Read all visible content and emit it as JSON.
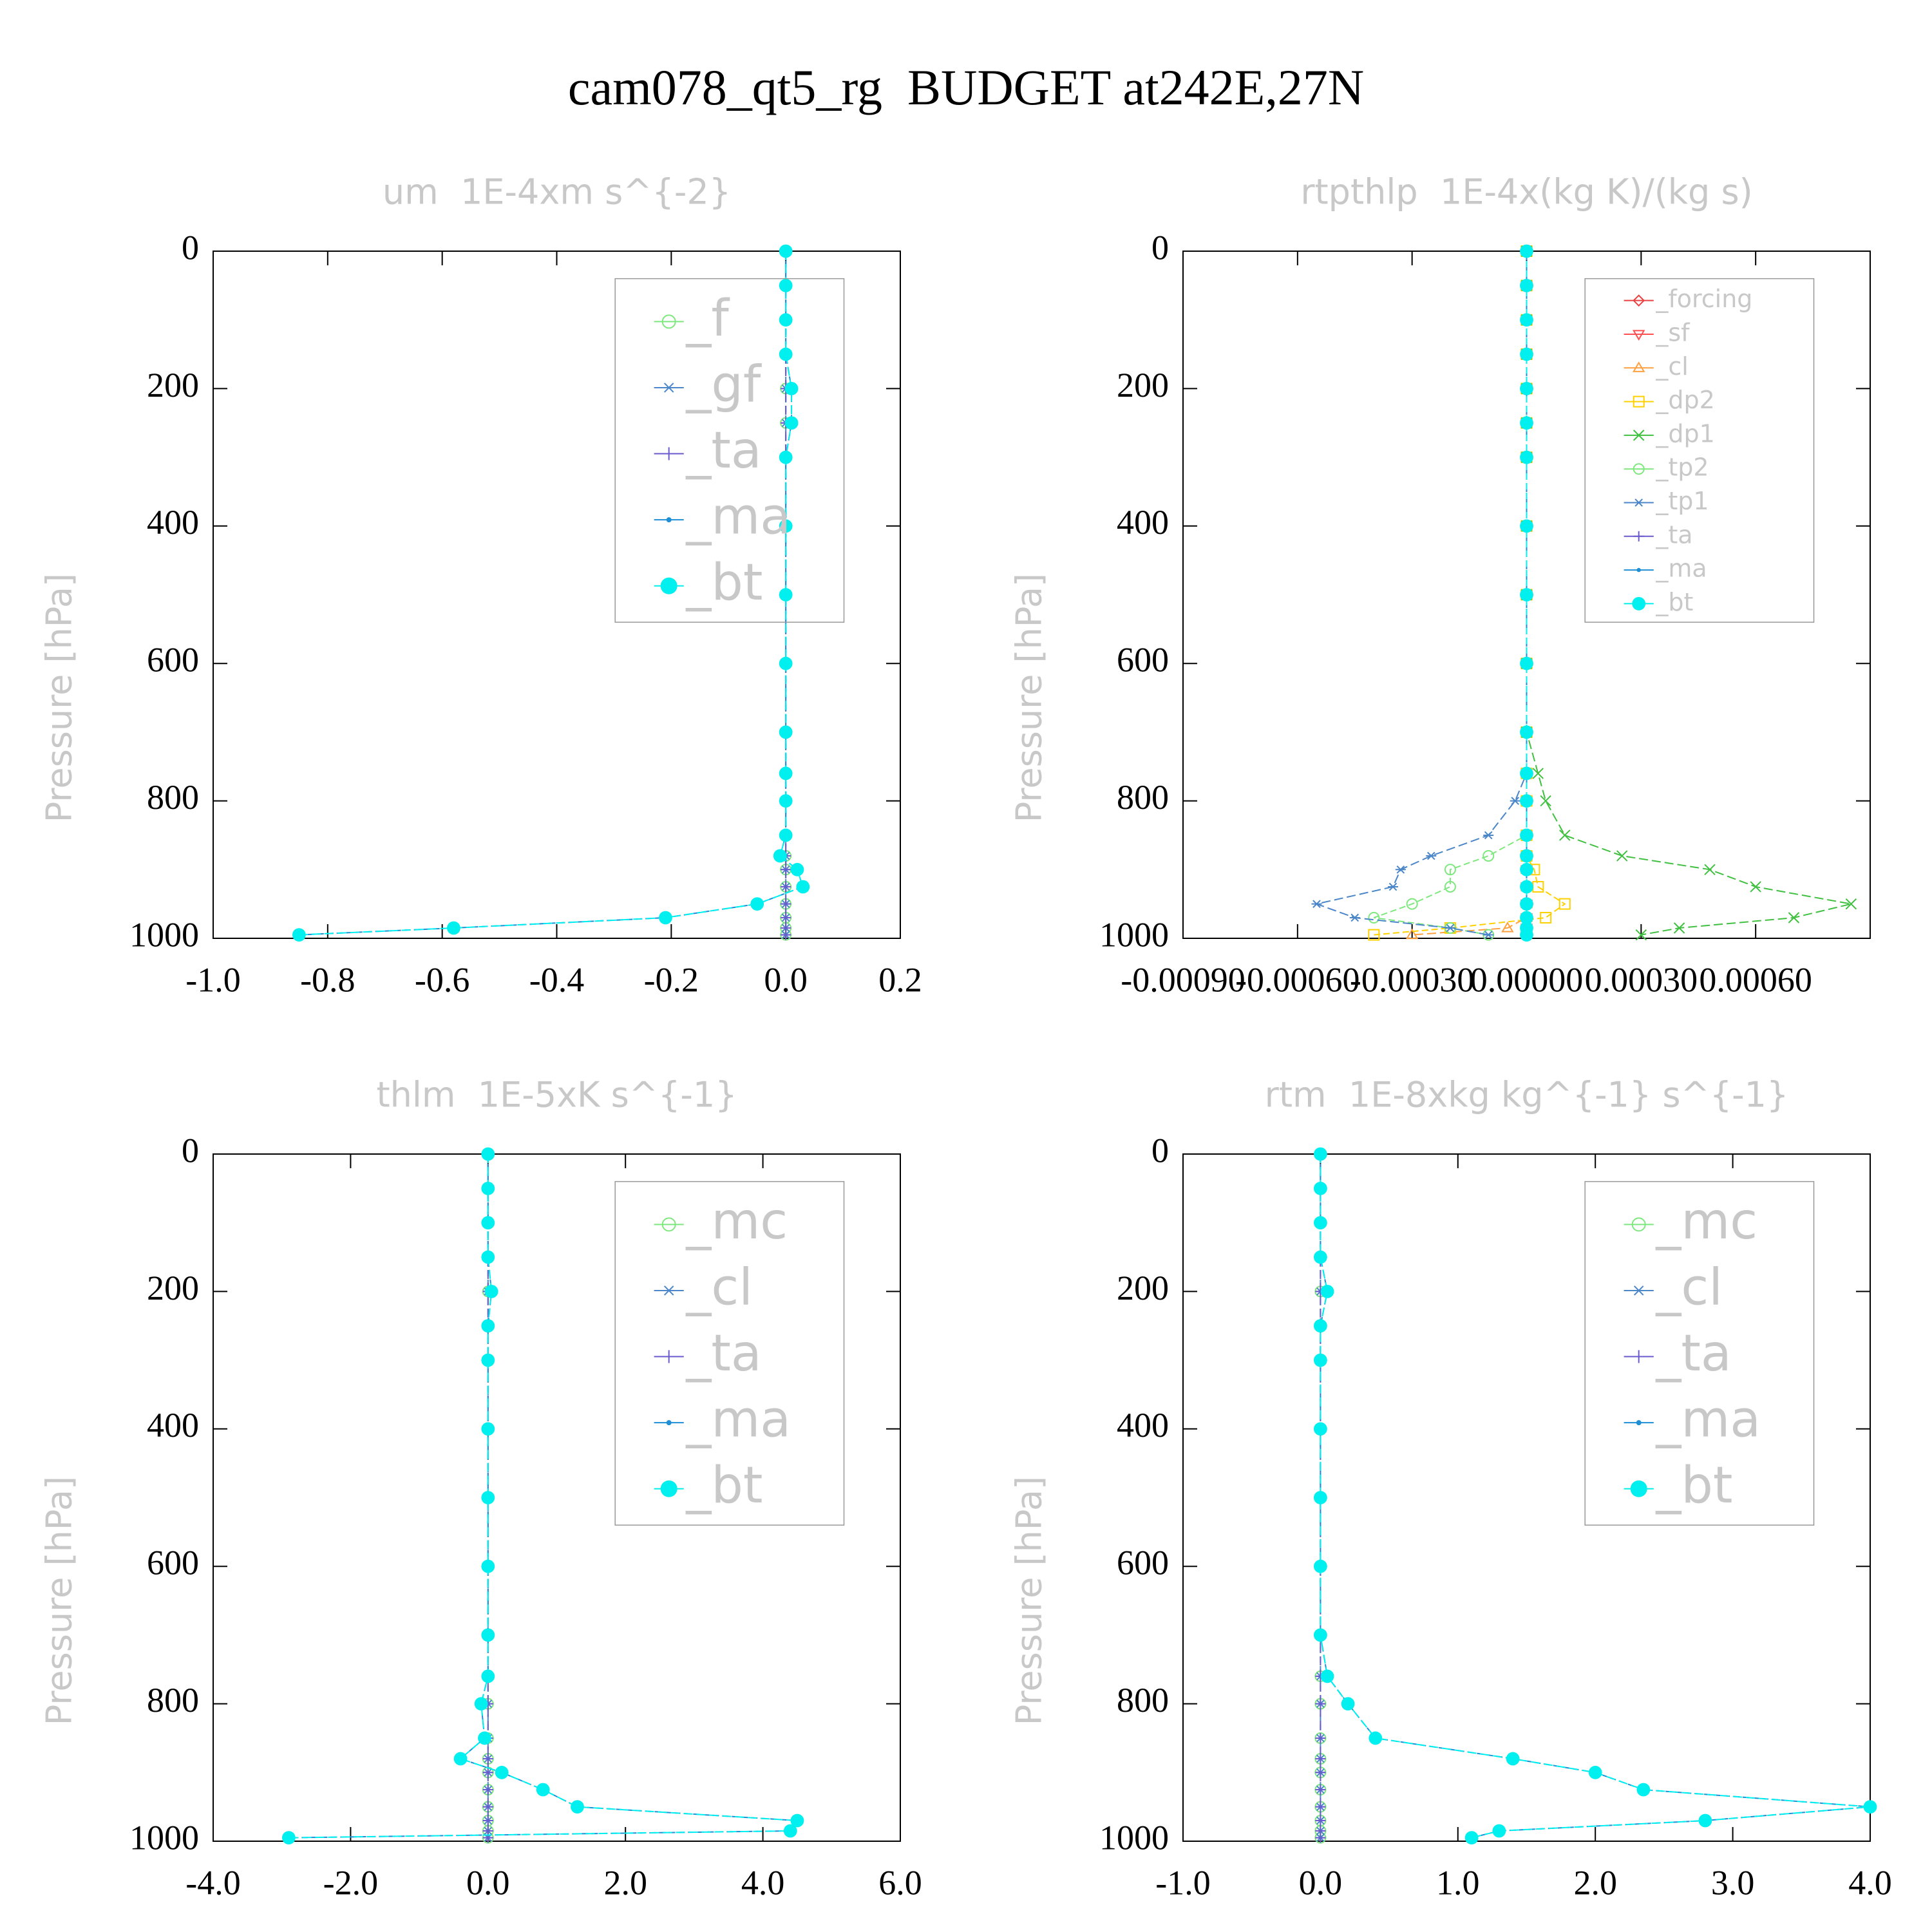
{
  "title": "cam078_qt5_rg  BUDGET at242E,27N",
  "chart_data": [
    {
      "type": "line",
      "title": "um  1E-4xm s^{-2}",
      "ylabel": "Pressure [hPa]",
      "legend": "upper right",
      "xlim": [
        -1,
        0.2
      ],
      "xticks": [
        {
          "value": -1,
          "label": "-1.0"
        },
        -0.8,
        -0.6,
        -0.4,
        -0.2,
        {
          "value": 0,
          "label": "0.0"
        },
        0.2
      ],
      "ylim": [
        1000,
        0
      ],
      "yticks": [
        0,
        200,
        400,
        600,
        800,
        1000
      ],
      "y": [
        0,
        50,
        100,
        150,
        200,
        250,
        300,
        400,
        500,
        600,
        700,
        760,
        800,
        850,
        880,
        900,
        925,
        950,
        970,
        985,
        995
      ],
      "series": [
        {
          "name": "_f",
          "color": "#7ee87e",
          "marker": "circle",
          "values": [
            0,
            0,
            0,
            0,
            0,
            0,
            0,
            0,
            0,
            0,
            0,
            0,
            0,
            0,
            0,
            0,
            0,
            0,
            0,
            0,
            0
          ]
        },
        {
          "name": "_gf",
          "color": "#4a86c8",
          "marker": "asterisk",
          "values": [
            0,
            0,
            0,
            0,
            0,
            0,
            0,
            0,
            0,
            0,
            0,
            0,
            0,
            0,
            0,
            0,
            0,
            0,
            0,
            0,
            0
          ]
        },
        {
          "name": "_ta",
          "color": "#6a5acd",
          "marker": "plus",
          "values": [
            0,
            0,
            0,
            0,
            0,
            0,
            0,
            0,
            0,
            0,
            0,
            0,
            0,
            0,
            0,
            0,
            0,
            0,
            0,
            0,
            0
          ]
        },
        {
          "name": "_ma",
          "color": "#1e8fd6",
          "marker": "dot",
          "values": [
            0,
            0,
            0,
            0,
            0.01,
            0.01,
            0,
            0,
            0,
            0,
            0,
            0,
            0,
            0,
            -0.01,
            0.02,
            0.03,
            -0.05,
            -0.21,
            -0.58,
            -0.85
          ]
        },
        {
          "name": "_bt",
          "color": "#00f0f0",
          "marker": "disc",
          "values": [
            0,
            0,
            0,
            0,
            0.01,
            0.01,
            0,
            0,
            0,
            0,
            0,
            0,
            0,
            0,
            -0.01,
            0.02,
            0.03,
            -0.05,
            -0.21,
            -0.58,
            -0.85
          ]
        }
      ]
    },
    {
      "type": "line",
      "title": "rtpthlp  1E-4x(kg K)/(kg s)",
      "ylabel": "Pressure [hPa]",
      "legend": "upper right",
      "xlim": [
        -0.0009,
        0.0009
      ],
      "xticks": [
        {
          "value": -0.0009,
          "label": "-0.00090"
        },
        {
          "value": -0.0006,
          "label": "-0.00060"
        },
        {
          "value": -0.0003,
          "label": "-0.00030"
        },
        {
          "value": 0,
          "label": "0.00000"
        },
        {
          "value": 0.0003,
          "label": "0.00030"
        },
        {
          "value": 0.0006,
          "label": "0.00060"
        }
      ],
      "ylim": [
        1000,
        0
      ],
      "yticks": [
        0,
        200,
        400,
        600,
        800,
        1000
      ],
      "y": [
        0,
        50,
        100,
        150,
        200,
        250,
        300,
        400,
        500,
        600,
        700,
        760,
        800,
        850,
        880,
        900,
        925,
        950,
        970,
        985,
        995
      ],
      "series": [
        {
          "name": "_forcing",
          "color": "#e84040",
          "marker": "diamond",
          "values": [
            0,
            0,
            0,
            0,
            0,
            0,
            0,
            0,
            0,
            0,
            0,
            0,
            0,
            0,
            0,
            0,
            0,
            0,
            0,
            0,
            0
          ]
        },
        {
          "name": "_sf",
          "color": "#ff5050",
          "marker": "triangle-down",
          "values": [
            0,
            0,
            0,
            0,
            0,
            0,
            0,
            0,
            0,
            0,
            0,
            0,
            0,
            0,
            0,
            0,
            0,
            0,
            0,
            0,
            0
          ]
        },
        {
          "name": "_cl",
          "color": "#ffa040",
          "marker": "triangle",
          "values": [
            0,
            0,
            0,
            0,
            0,
            0,
            0,
            0,
            0,
            0,
            0,
            0,
            0,
            0,
            0,
            0,
            0,
            0,
            0,
            -5e-05,
            -0.0003
          ]
        },
        {
          "name": "_dp2",
          "color": "#ffd000",
          "marker": "square",
          "values": [
            0,
            0,
            0,
            0,
            0,
            0,
            0,
            0,
            0,
            0,
            0,
            0,
            0,
            0,
            0,
            2e-05,
            3e-05,
            0.0001,
            5e-05,
            -0.0002,
            -0.0004
          ]
        },
        {
          "name": "_dp1",
          "color": "#40c040",
          "marker": "cross",
          "values": [
            0,
            0,
            0,
            0,
            0,
            0,
            0,
            0,
            0,
            0,
            0,
            3e-05,
            5e-05,
            0.0001,
            0.00025,
            0.00048,
            0.0006,
            0.00085,
            0.0007,
            0.0004,
            0.0003
          ]
        },
        {
          "name": "_tp2",
          "color": "#7ee87e",
          "marker": "circle",
          "values": [
            0,
            0,
            0,
            0,
            0,
            0,
            0,
            0,
            0,
            0,
            0,
            0,
            0,
            0,
            -0.0001,
            -0.0002,
            -0.0002,
            -0.0003,
            -0.0004,
            -0.0002,
            -0.0001
          ]
        },
        {
          "name": "_tp1",
          "color": "#4a86c8",
          "marker": "asterisk",
          "values": [
            0,
            0,
            0,
            0,
            0,
            0,
            0,
            0,
            0,
            0,
            0,
            0,
            -3e-05,
            -0.0001,
            -0.00025,
            -0.00033,
            -0.00035,
            -0.00055,
            -0.00045,
            -0.0002,
            -0.0001
          ]
        },
        {
          "name": "_ta",
          "color": "#6a5acd",
          "marker": "plus",
          "values": [
            0,
            0,
            0,
            0,
            0,
            0,
            0,
            0,
            0,
            0,
            0,
            0,
            0,
            0,
            0,
            0,
            0,
            0,
            0,
            0,
            0
          ]
        },
        {
          "name": "_ma",
          "color": "#1e8fd6",
          "marker": "dot",
          "values": [
            0,
            0,
            0,
            0,
            0,
            0,
            0,
            0,
            0,
            0,
            0,
            0,
            0,
            0,
            0,
            0,
            0,
            0,
            0,
            0,
            0
          ]
        },
        {
          "name": "_bt",
          "color": "#00f0f0",
          "marker": "disc",
          "values": [
            0,
            0,
            0,
            0,
            0,
            0,
            0,
            0,
            0,
            0,
            0,
            0,
            0,
            0,
            0,
            0,
            0,
            0,
            0,
            0,
            0
          ]
        }
      ]
    },
    {
      "type": "line",
      "title": "thlm  1E-5xK s^{-1}",
      "ylabel": "Pressure [hPa]",
      "legend": "upper right",
      "xlim": [
        -4,
        6
      ],
      "xticks": [
        {
          "value": -4,
          "label": "-4.0"
        },
        {
          "value": -2,
          "label": "-2.0"
        },
        {
          "value": 0,
          "label": "0.0"
        },
        {
          "value": 2,
          "label": "2.0"
        },
        {
          "value": 4,
          "label": "4.0"
        },
        {
          "value": 6,
          "label": "6.0"
        }
      ],
      "ylim": [
        1000,
        0
      ],
      "yticks": [
        0,
        200,
        400,
        600,
        800,
        1000
      ],
      "y": [
        0,
        50,
        100,
        150,
        200,
        250,
        300,
        400,
        500,
        600,
        700,
        760,
        800,
        850,
        880,
        900,
        925,
        950,
        970,
        985,
        995
      ],
      "series": [
        {
          "name": "_mc",
          "color": "#7ee87e",
          "marker": "circle",
          "values": [
            0,
            0,
            0,
            0,
            0,
            0,
            0,
            0,
            0,
            0,
            0,
            0,
            0,
            0,
            0,
            0,
            0,
            0,
            0,
            0,
            0
          ]
        },
        {
          "name": "_cl",
          "color": "#4a86c8",
          "marker": "asterisk",
          "values": [
            0,
            0,
            0,
            0,
            0,
            0,
            0,
            0,
            0,
            0,
            0,
            0,
            0,
            0,
            0,
            0,
            0,
            0,
            0,
            0,
            0
          ]
        },
        {
          "name": "_ta",
          "color": "#6a5acd",
          "marker": "plus",
          "values": [
            0,
            0,
            0,
            0,
            0,
            0,
            0,
            0,
            0,
            0,
            0,
            0,
            0,
            0,
            0,
            0,
            0,
            0,
            0,
            0,
            0
          ]
        },
        {
          "name": "_ma",
          "color": "#1e8fd6",
          "marker": "dot",
          "values": [
            0,
            0,
            0,
            0,
            0.05,
            0,
            0,
            0,
            0,
            0,
            0,
            0,
            -0.1,
            -0.05,
            -0.4,
            0.2,
            0.8,
            1.3,
            4.5,
            4.4,
            -2.9
          ]
        },
        {
          "name": "_bt",
          "color": "#00f0f0",
          "marker": "disc",
          "values": [
            0,
            0,
            0,
            0,
            0.05,
            0,
            0,
            0,
            0,
            0,
            0,
            0,
            -0.1,
            -0.05,
            -0.4,
            0.2,
            0.8,
            1.3,
            4.5,
            4.4,
            -2.9
          ]
        }
      ]
    },
    {
      "type": "line",
      "title": "rtm  1E-8xkg kg^{-1} s^{-1}",
      "ylabel": "Pressure [hPa]",
      "legend": "upper right",
      "xlim": [
        -1,
        4
      ],
      "xticks": [
        {
          "value": -1,
          "label": "-1.0"
        },
        {
          "value": 0,
          "label": "0.0"
        },
        {
          "value": 1,
          "label": "1.0"
        },
        {
          "value": 2,
          "label": "2.0"
        },
        {
          "value": 3,
          "label": "3.0"
        },
        {
          "value": 4,
          "label": "4.0"
        }
      ],
      "ylim": [
        1000,
        0
      ],
      "yticks": [
        0,
        200,
        400,
        600,
        800,
        1000
      ],
      "y": [
        0,
        50,
        100,
        150,
        200,
        250,
        300,
        400,
        500,
        600,
        700,
        760,
        800,
        850,
        880,
        900,
        925,
        950,
        970,
        985,
        995
      ],
      "series": [
        {
          "name": "_mc",
          "color": "#7ee87e",
          "marker": "circle",
          "values": [
            0,
            0,
            0,
            0,
            0,
            0,
            0,
            0,
            0,
            0,
            0,
            0,
            0,
            0,
            0,
            0,
            0,
            0,
            0,
            0,
            0
          ]
        },
        {
          "name": "_cl",
          "color": "#4a86c8",
          "marker": "asterisk",
          "values": [
            0,
            0,
            0,
            0,
            0,
            0,
            0,
            0,
            0,
            0,
            0,
            0,
            0,
            0,
            0,
            0,
            0,
            0,
            0,
            0,
            0
          ]
        },
        {
          "name": "_ta",
          "color": "#6a5acd",
          "marker": "plus",
          "values": [
            0,
            0,
            0,
            0,
            0,
            0,
            0,
            0,
            0,
            0,
            0,
            0,
            0,
            0,
            0,
            0,
            0,
            0,
            0,
            0,
            0
          ]
        },
        {
          "name": "_ma",
          "color": "#1e8fd6",
          "marker": "dot",
          "values": [
            0,
            0,
            0,
            0,
            0.05,
            0,
            0,
            0,
            0,
            0,
            0,
            0.05,
            0.2,
            0.4,
            1.4,
            2.0,
            2.35,
            4.0,
            2.8,
            1.3,
            1.1
          ]
        },
        {
          "name": "_bt",
          "color": "#00f0f0",
          "marker": "disc",
          "values": [
            0,
            0,
            0,
            0,
            0.05,
            0,
            0,
            0,
            0,
            0,
            0,
            0.05,
            0.2,
            0.4,
            1.4,
            2.0,
            2.35,
            4.0,
            2.8,
            1.3,
            1.1
          ]
        }
      ]
    }
  ]
}
